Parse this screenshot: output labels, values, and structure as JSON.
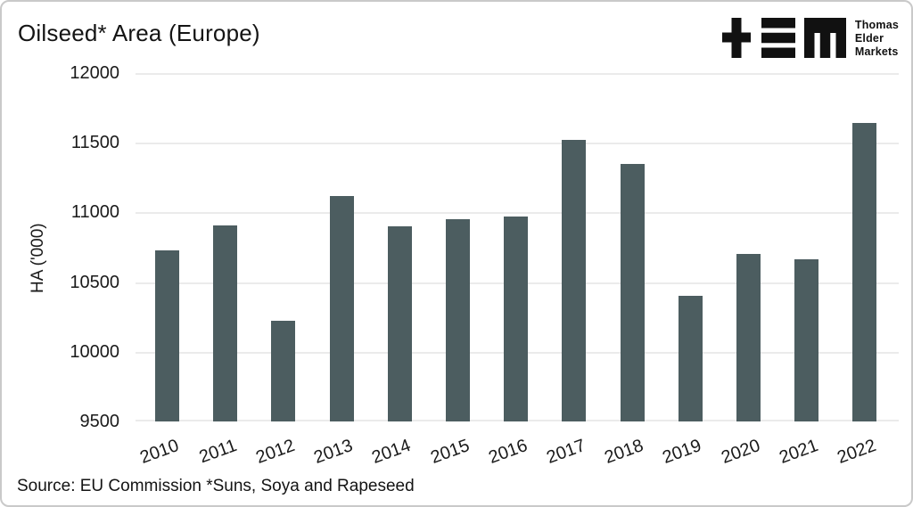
{
  "title": "Oilseed* Area (Europe)",
  "logo": {
    "lines": [
      "Thomas",
      "Elder",
      "Markets"
    ]
  },
  "source_note": "Source: EU Commission *Suns, Soya and Rapeseed",
  "colors": {
    "bar": "#4c5d60",
    "gridline": "#ebebeb",
    "text": "#141414",
    "frame_border": "#c9c9c9",
    "logo": "#111111"
  },
  "chart_data": {
    "type": "bar",
    "title": "Oilseed* Area (Europe)",
    "xlabel": "",
    "ylabel": "HA ('000)",
    "categories": [
      "2010",
      "2011",
      "2012",
      "2013",
      "2014",
      "2015",
      "2016",
      "2017",
      "2018",
      "2019",
      "2020",
      "2021",
      "2022"
    ],
    "values": [
      10730,
      10905,
      10225,
      11115,
      10900,
      10950,
      10970,
      11520,
      11345,
      10400,
      10705,
      10665,
      11640
    ],
    "ylim": [
      9500,
      12000
    ],
    "y_ticks": [
      9500,
      10000,
      10500,
      11000,
      11500,
      12000
    ],
    "grid": "horizontal-only",
    "legend": "none",
    "bar_color": "#4c5d60",
    "source": "Source: EU Commission *Suns, Soya and Rapeseed"
  }
}
